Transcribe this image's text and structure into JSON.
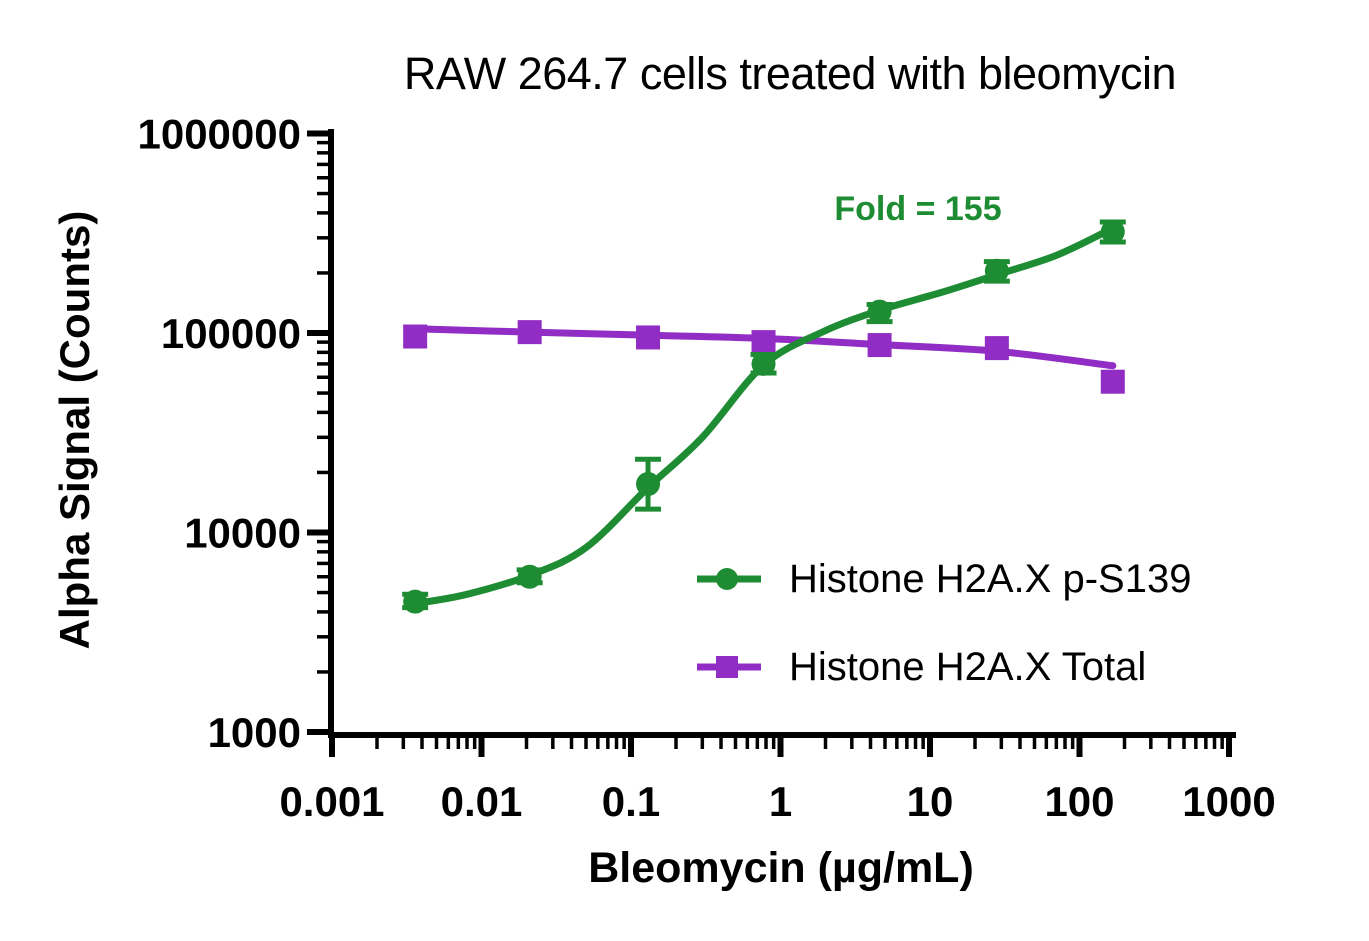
{
  "chart_data": {
    "type": "line",
    "title": "RAW 264.7 cells treated with bleomycin",
    "xlabel": "Bleomycin (µg/mL)",
    "ylabel": "Alpha Signal (Counts)",
    "x_scale": "log",
    "y_scale": "log",
    "xlim": [
      0.001,
      1000
    ],
    "ylim": [
      1000,
      1000000
    ],
    "x_ticks": [
      0.001,
      0.01,
      0.1,
      1,
      10,
      100,
      1000
    ],
    "x_tick_labels": [
      "0.001",
      "0.01",
      "0.1",
      "1",
      "10",
      "100",
      "1000"
    ],
    "y_ticks": [
      1000,
      10000,
      100000,
      1000000
    ],
    "y_tick_labels": [
      "1000",
      "10000",
      "100000",
      "1000000"
    ],
    "grid": false,
    "legend_position": "inside-lower-right",
    "annotation": {
      "text": "Fold = 155",
      "color": "#1e8c33"
    },
    "series": [
      {
        "name": "Histone H2A.X p-S139",
        "color": "#1e8c33",
        "marker": "circle",
        "points": [
          {
            "x": 0.0036,
            "y": 4500,
            "lo": 4200,
            "hi": 4900
          },
          {
            "x": 0.021,
            "y": 6000,
            "lo": 5600,
            "hi": 6500
          },
          {
            "x": 0.13,
            "y": 17500,
            "lo": 13100,
            "hi": 23300
          },
          {
            "x": 0.77,
            "y": 70000,
            "lo": 63000,
            "hi": 78000
          },
          {
            "x": 4.6,
            "y": 128000,
            "lo": 114000,
            "hi": 139000
          },
          {
            "x": 28,
            "y": 205000,
            "lo": 182000,
            "hi": 228000
          },
          {
            "x": 167,
            "y": 322000,
            "lo": 286000,
            "hi": 360000
          }
        ],
        "fit": [
          [
            0.0036,
            4400
          ],
          [
            0.008,
            4900
          ],
          [
            0.021,
            6100
          ],
          [
            0.05,
            8400
          ],
          [
            0.13,
            16800
          ],
          [
            0.3,
            30000
          ],
          [
            0.77,
            69000
          ],
          [
            1.9,
            101000
          ],
          [
            4.6,
            130000
          ],
          [
            12,
            160000
          ],
          [
            28,
            196000
          ],
          [
            70,
            245000
          ],
          [
            167,
            335000
          ]
        ]
      },
      {
        "name": "Histone H2A.X Total",
        "color": "#912cc4",
        "marker": "square",
        "points": [
          {
            "x": 0.0036,
            "y": 96000
          },
          {
            "x": 0.021,
            "y": 101000
          },
          {
            "x": 0.13,
            "y": 95000
          },
          {
            "x": 0.77,
            "y": 90000
          },
          {
            "x": 4.6,
            "y": 87000
          },
          {
            "x": 28,
            "y": 84000
          },
          {
            "x": 167,
            "y": 57000
          }
        ],
        "fit": [
          [
            0.0036,
            105000
          ],
          [
            0.021,
            101000
          ],
          [
            0.13,
            97500
          ],
          [
            0.77,
            94000
          ],
          [
            4.6,
            87500
          ],
          [
            28,
            81000
          ],
          [
            167,
            68500
          ]
        ]
      }
    ]
  }
}
